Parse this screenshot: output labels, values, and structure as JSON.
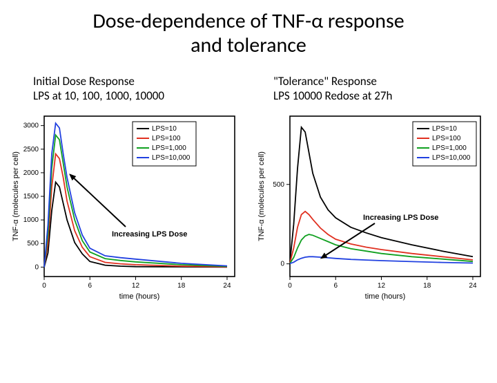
{
  "title_line1": "Dose-dependence of TNF-α response",
  "title_line2": "and tolerance",
  "left": {
    "subtitle_line1": "Initial Dose Response",
    "subtitle_line2": "LPS at 10, 100, 1000, 10000",
    "chart": {
      "type": "line",
      "xlabel": "time (hours)",
      "ylabel": "TNF-α (molecules per cell)",
      "xlim": [
        0,
        25
      ],
      "ylim": [
        -200,
        3200
      ],
      "xticks": [
        0,
        6,
        12,
        18,
        24
      ],
      "yticks": [
        0,
        500,
        1000,
        1500,
        2000,
        2500,
        3000
      ],
      "background_color": "#ffffff",
      "axis_color": "#000000",
      "line_width": 1.8,
      "label_fontsize": 11,
      "tick_fontsize": 10,
      "annotation": "Increasing LPS Dose",
      "legend": [
        {
          "label": "LPS=10",
          "color": "#000000"
        },
        {
          "label": "LPS=100",
          "color": "#e03020"
        },
        {
          "label": "LPS=1,000",
          "color": "#10a020"
        },
        {
          "label": "LPS=10,000",
          "color": "#2040e0"
        }
      ],
      "series": [
        {
          "name": "LPS=10",
          "color": "#000000",
          "points": [
            [
              0,
              0
            ],
            [
              0.5,
              300
            ],
            [
              1,
              1200
            ],
            [
              1.5,
              1800
            ],
            [
              2,
              1700
            ],
            [
              2.5,
              1350
            ],
            [
              3,
              1000
            ],
            [
              4,
              520
            ],
            [
              5,
              280
            ],
            [
              6,
              120
            ],
            [
              8,
              40
            ],
            [
              10,
              20
            ],
            [
              12,
              10
            ],
            [
              18,
              5
            ],
            [
              24,
              0
            ]
          ]
        },
        {
          "name": "LPS=100",
          "color": "#e03020",
          "points": [
            [
              0,
              0
            ],
            [
              0.5,
              500
            ],
            [
              1,
              1700
            ],
            [
              1.5,
              2400
            ],
            [
              2,
              2300
            ],
            [
              2.5,
              1900
            ],
            [
              3,
              1400
            ],
            [
              4,
              770
            ],
            [
              5,
              420
            ],
            [
              6,
              220
            ],
            [
              8,
              100
            ],
            [
              10,
              70
            ],
            [
              12,
              50
            ],
            [
              18,
              20
            ],
            [
              24,
              5
            ]
          ]
        },
        {
          "name": "LPS=1,000",
          "color": "#10a020",
          "points": [
            [
              0,
              0
            ],
            [
              0.5,
              700
            ],
            [
              1,
              2100
            ],
            [
              1.5,
              2800
            ],
            [
              2,
              2700
            ],
            [
              2.5,
              2200
            ],
            [
              3,
              1700
            ],
            [
              4,
              1000
            ],
            [
              5,
              560
            ],
            [
              6,
              320
            ],
            [
              8,
              180
            ],
            [
              10,
              140
            ],
            [
              12,
              110
            ],
            [
              18,
              50
            ],
            [
              24,
              15
            ]
          ]
        },
        {
          "name": "LPS=10,000",
          "color": "#2040e0",
          "points": [
            [
              0,
              0
            ],
            [
              0.5,
              900
            ],
            [
              1,
              2400
            ],
            [
              1.5,
              3050
            ],
            [
              2,
              2950
            ],
            [
              2.5,
              2400
            ],
            [
              3,
              1900
            ],
            [
              4,
              1150
            ],
            [
              5,
              680
            ],
            [
              6,
              400
            ],
            [
              8,
              240
            ],
            [
              10,
              200
            ],
            [
              12,
              170
            ],
            [
              18,
              80
            ],
            [
              24,
              25
            ]
          ]
        }
      ]
    }
  },
  "right": {
    "subtitle_line1": "\"Tolerance\" Response",
    "subtitle_line2": "LPS 10000 Redose at 27h",
    "chart": {
      "type": "line",
      "xlabel": "time (hours)",
      "ylabel": "TNF-α (molecules per cell)",
      "xlim": [
        0,
        25
      ],
      "ylim": [
        -80,
        930
      ],
      "xticks": [
        0,
        6,
        12,
        18,
        24
      ],
      "yticks": [
        0,
        500
      ],
      "background_color": "#ffffff",
      "axis_color": "#000000",
      "line_width": 1.8,
      "label_fontsize": 11,
      "tick_fontsize": 10,
      "annotation": "Increasing LPS Dose",
      "legend": [
        {
          "label": "LPS=10",
          "color": "#000000"
        },
        {
          "label": "LPS=100",
          "color": "#e03020"
        },
        {
          "label": "LPS=1,000",
          "color": "#10a020"
        },
        {
          "label": "LPS=10,000",
          "color": "#2040e0"
        }
      ],
      "series": [
        {
          "name": "LPS=10",
          "color": "#000000",
          "points": [
            [
              0,
              10
            ],
            [
              0.5,
              250
            ],
            [
              1,
              600
            ],
            [
              1.5,
              860
            ],
            [
              2,
              830
            ],
            [
              2.5,
              700
            ],
            [
              3,
              570
            ],
            [
              4,
              420
            ],
            [
              5,
              340
            ],
            [
              6,
              290
            ],
            [
              8,
              230
            ],
            [
              10,
              195
            ],
            [
              12,
              165
            ],
            [
              16,
              120
            ],
            [
              20,
              80
            ],
            [
              24,
              45
            ]
          ]
        },
        {
          "name": "LPS=100",
          "color": "#e03020",
          "points": [
            [
              0,
              5
            ],
            [
              0.5,
              100
            ],
            [
              1,
              230
            ],
            [
              1.5,
              310
            ],
            [
              2,
              330
            ],
            [
              2.5,
              310
            ],
            [
              3,
              280
            ],
            [
              4,
              225
            ],
            [
              5,
              185
            ],
            [
              6,
              155
            ],
            [
              8,
              125
            ],
            [
              10,
              105
            ],
            [
              12,
              90
            ],
            [
              16,
              65
            ],
            [
              20,
              45
            ],
            [
              24,
              25
            ]
          ]
        },
        {
          "name": "LPS=1,000",
          "color": "#10a020",
          "points": [
            [
              0,
              3
            ],
            [
              0.5,
              40
            ],
            [
              1,
              100
            ],
            [
              1.5,
              150
            ],
            [
              2,
              175
            ],
            [
              2.5,
              185
            ],
            [
              3,
              180
            ],
            [
              4,
              160
            ],
            [
              5,
              140
            ],
            [
              6,
              120
            ],
            [
              8,
              95
            ],
            [
              10,
              80
            ],
            [
              12,
              65
            ],
            [
              16,
              45
            ],
            [
              20,
              30
            ],
            [
              24,
              15
            ]
          ]
        },
        {
          "name": "LPS=10,000",
          "color": "#2040e0",
          "points": [
            [
              0,
              2
            ],
            [
              0.5,
              10
            ],
            [
              1,
              25
            ],
            [
              1.5,
              35
            ],
            [
              2,
              42
            ],
            [
              2.5,
              45
            ],
            [
              3,
              45
            ],
            [
              4,
              42
            ],
            [
              5,
              38
            ],
            [
              6,
              34
            ],
            [
              8,
              28
            ],
            [
              10,
              24
            ],
            [
              12,
              20
            ],
            [
              16,
              14
            ],
            [
              20,
              9
            ],
            [
              24,
              5
            ]
          ]
        }
      ]
    }
  }
}
